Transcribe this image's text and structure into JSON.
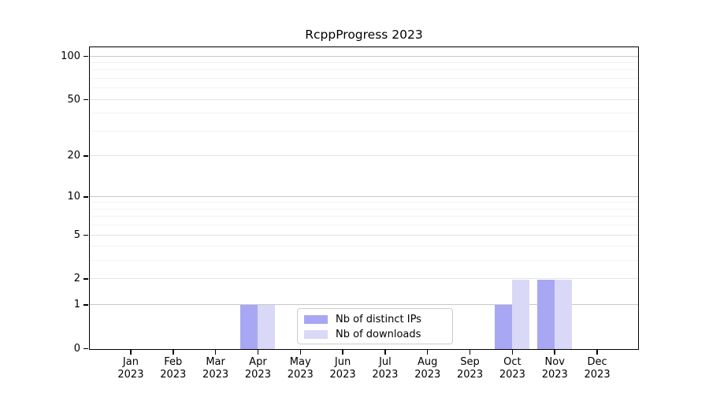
{
  "chart_data": {
    "type": "bar",
    "title": "RcppProgress 2023",
    "categories": [
      "Jan 2023",
      "Feb 2023",
      "Mar 2023",
      "Apr 2023",
      "May 2023",
      "Jun 2023",
      "Jul 2023",
      "Aug 2023",
      "Sep 2023",
      "Oct 2023",
      "Nov 2023",
      "Dec 2023"
    ],
    "month_labels": [
      "Jan",
      "Feb",
      "Mar",
      "Apr",
      "May",
      "Jun",
      "Jul",
      "Aug",
      "Sep",
      "Oct",
      "Nov",
      "Dec"
    ],
    "year_label": "2023",
    "series": [
      {
        "name": "Nb of distinct IPs",
        "color": "#a7a7f3",
        "values": [
          0,
          0,
          0,
          1,
          0,
          0,
          0,
          0,
          0,
          1,
          2,
          0
        ]
      },
      {
        "name": "Nb of downloads",
        "color": "#d9d9f7",
        "values": [
          0,
          0,
          0,
          1,
          0,
          0,
          0,
          0,
          0,
          2,
          2,
          0
        ]
      }
    ],
    "yscale": "log1p",
    "ylim": [
      0,
      115
    ],
    "y_ticks": [
      0,
      1,
      2,
      5,
      10,
      20,
      50,
      100
    ],
    "grid": "both",
    "grid_major_values": [
      1,
      10,
      100
    ],
    "grid_mid_values": [
      2,
      5,
      20,
      50
    ],
    "grid_minor_values": [
      3,
      4,
      6,
      7,
      8,
      9,
      30,
      40,
      60,
      70,
      80,
      90
    ],
    "legend_position": "lower center"
  },
  "colors": {
    "grid_major": "#c8c8c8",
    "grid_mid": "#e3e3e3",
    "grid_minor": "#f2f2f2",
    "axis": "#000000",
    "legend_border": "#cccccc",
    "background": "#ffffff"
  }
}
